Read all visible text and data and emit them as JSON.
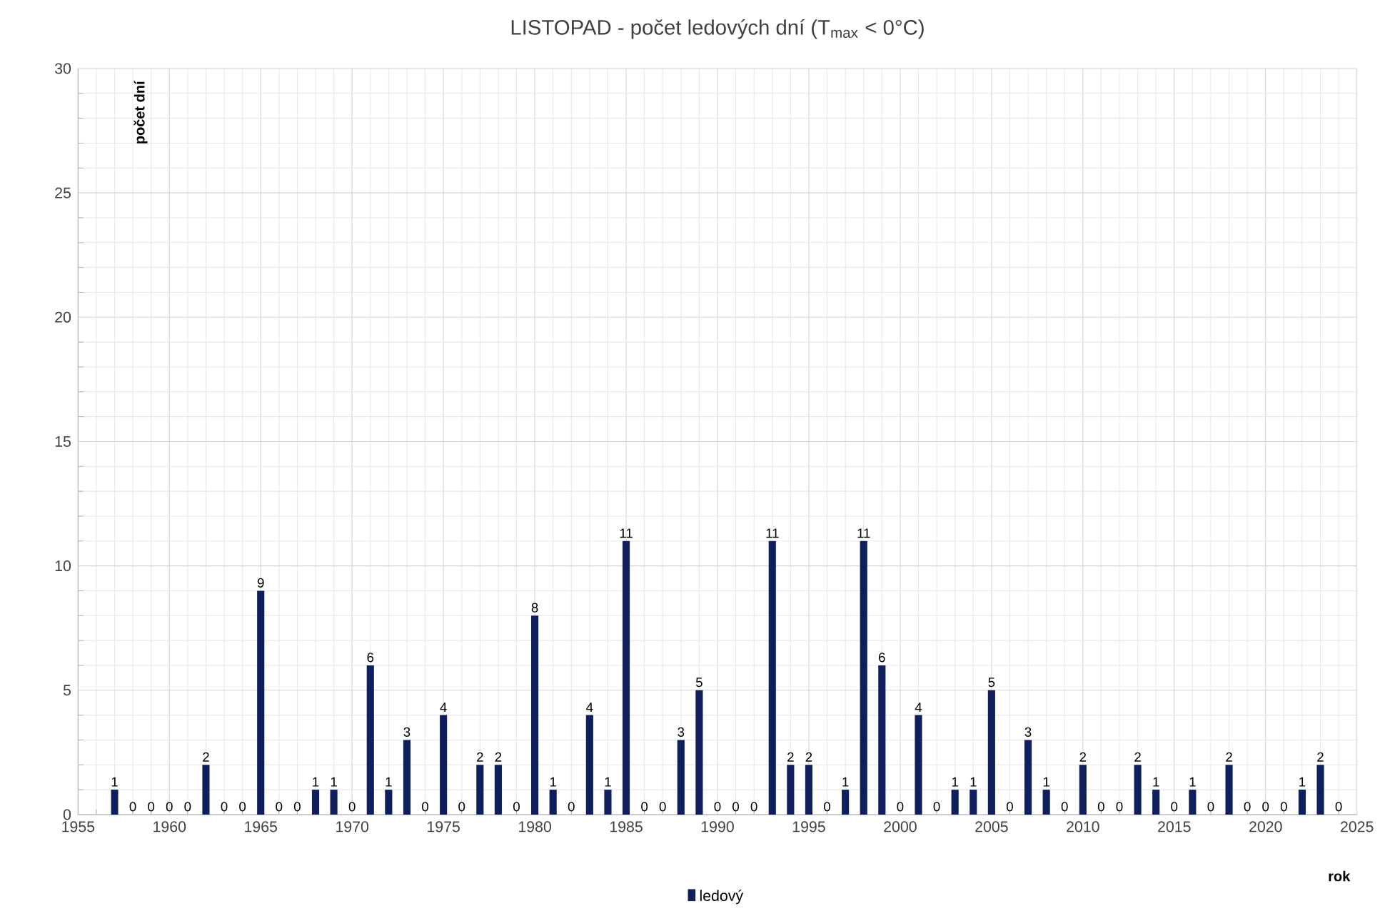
{
  "chart_data": {
    "type": "bar",
    "title": "LISTOPAD - počet ledových dní (T$_{max}$ < 0°C)",
    "xlabel": "rok",
    "ylabel": "počet dní",
    "x": [
      1957,
      1958,
      1959,
      1960,
      1961,
      1962,
      1963,
      1964,
      1965,
      1966,
      1967,
      1968,
      1969,
      1970,
      1971,
      1972,
      1973,
      1974,
      1975,
      1976,
      1977,
      1978,
      1979,
      1980,
      1981,
      1982,
      1983,
      1984,
      1985,
      1986,
      1987,
      1988,
      1989,
      1990,
      1991,
      1992,
      1993,
      1994,
      1995,
      1996,
      1997,
      1998,
      1999,
      2000,
      2001,
      2002,
      2003,
      2004,
      2005,
      2006,
      2007,
      2008,
      2009,
      2010,
      2011,
      2012,
      2013,
      2014,
      2015,
      2016,
      2017,
      2018,
      2019,
      2020,
      2021,
      2022,
      2023,
      2024
    ],
    "series": [
      {
        "name": "ledový",
        "color": "#0e1f5b",
        "values": [
          1,
          0,
          0,
          0,
          0,
          2,
          0,
          0,
          9,
          0,
          0,
          1,
          1,
          0,
          6,
          1,
          3,
          0,
          4,
          0,
          2,
          2,
          0,
          8,
          1,
          0,
          4,
          1,
          11,
          0,
          0,
          3,
          5,
          0,
          0,
          0,
          11,
          2,
          2,
          0,
          1,
          11,
          6,
          0,
          4,
          0,
          1,
          1,
          5,
          0,
          3,
          1,
          0,
          2,
          0,
          0,
          2,
          1,
          0,
          1,
          0,
          2,
          0,
          0,
          0,
          1,
          2,
          0
        ]
      }
    ],
    "xlim": [
      1955,
      2025
    ],
    "xticks": [
      1955,
      1960,
      1965,
      1970,
      1975,
      1980,
      1985,
      1990,
      1995,
      2000,
      2005,
      2010,
      2015,
      2020,
      2025
    ],
    "ylim": [
      0,
      30
    ],
    "yticks": [
      0,
      5,
      10,
      15,
      20,
      25,
      30
    ],
    "grid": true,
    "legend": "bottom",
    "data_labels": true
  }
}
